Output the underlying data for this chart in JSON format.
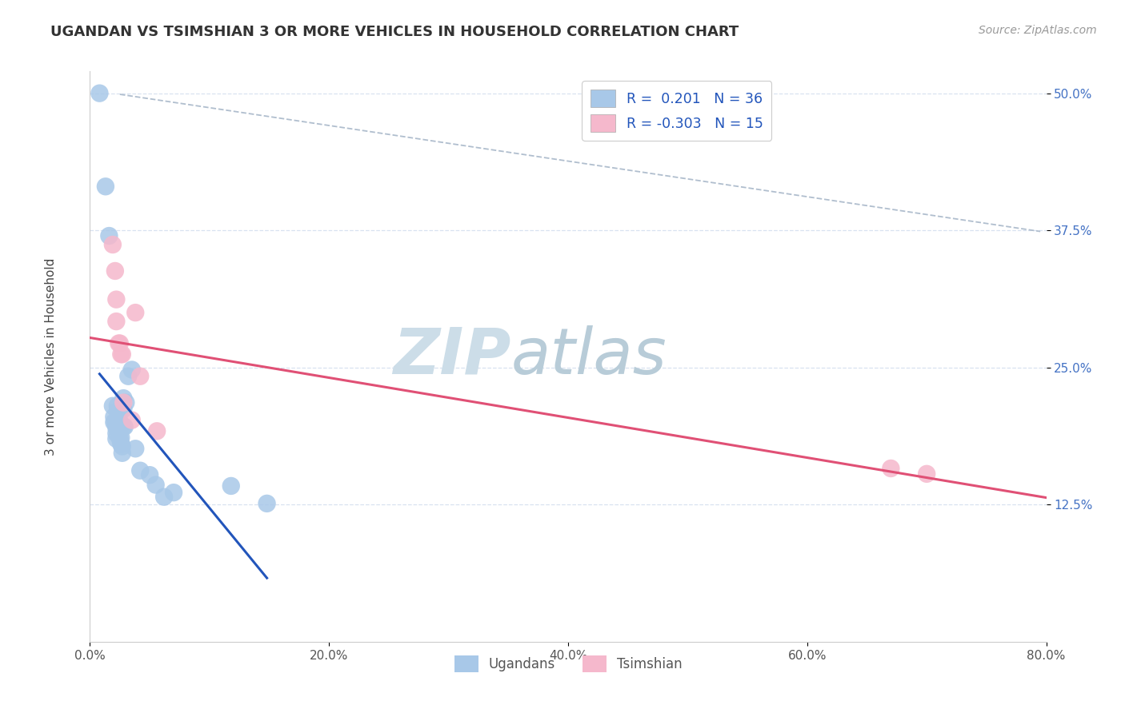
{
  "title": "UGANDAN VS TSIMSHIAN 3 OR MORE VEHICLES IN HOUSEHOLD CORRELATION CHART",
  "source_text": "Source: ZipAtlas.com",
  "ylabel": "3 or more Vehicles in Household",
  "xlim": [
    0.0,
    0.8
  ],
  "ylim": [
    0.0,
    0.52
  ],
  "ytick_values": [
    0.125,
    0.25,
    0.375,
    0.5
  ],
  "xtick_values": [
    0.0,
    0.2,
    0.4,
    0.6,
    0.8
  ],
  "blue_color": "#a8c8e8",
  "pink_color": "#f5b8cc",
  "blue_line_color": "#2255bb",
  "pink_line_color": "#e05075",
  "dash_line_color": "#b0bece",
  "background_color": "#ffffff",
  "grid_color": "#d8e2f0",
  "watermark_zip_color": "#ccdde8",
  "watermark_atlas_color": "#b8ccd8",
  "ugandan_x": [
    0.008,
    0.013,
    0.016,
    0.019,
    0.02,
    0.02,
    0.021,
    0.022,
    0.022,
    0.022,
    0.023,
    0.023,
    0.024,
    0.024,
    0.025,
    0.025,
    0.025,
    0.026,
    0.026,
    0.027,
    0.027,
    0.028,
    0.028,
    0.028,
    0.029,
    0.03,
    0.032,
    0.035,
    0.038,
    0.042,
    0.05,
    0.055,
    0.062,
    0.07,
    0.118,
    0.148
  ],
  "ugandan_y": [
    0.5,
    0.415,
    0.37,
    0.215,
    0.205,
    0.2,
    0.2,
    0.195,
    0.19,
    0.185,
    0.215,
    0.21,
    0.21,
    0.205,
    0.2,
    0.195,
    0.185,
    0.186,
    0.18,
    0.178,
    0.172,
    0.222,
    0.212,
    0.196,
    0.196,
    0.218,
    0.242,
    0.248,
    0.176,
    0.156,
    0.152,
    0.143,
    0.132,
    0.136,
    0.142,
    0.126
  ],
  "tsimshian_x": [
    0.019,
    0.021,
    0.022,
    0.022,
    0.024,
    0.025,
    0.026,
    0.027,
    0.028,
    0.035,
    0.038,
    0.042,
    0.056,
    0.67,
    0.7
  ],
  "tsimshian_y": [
    0.362,
    0.338,
    0.312,
    0.292,
    0.272,
    0.272,
    0.262,
    0.262,
    0.218,
    0.202,
    0.3,
    0.242,
    0.192,
    0.158,
    0.153
  ],
  "legend_r1_text": "R =  0.201   N = 36",
  "legend_r2_text": "R = -0.303   N = 15",
  "legend_label1": "Ugandans",
  "legend_label2": "Tsimshian"
}
